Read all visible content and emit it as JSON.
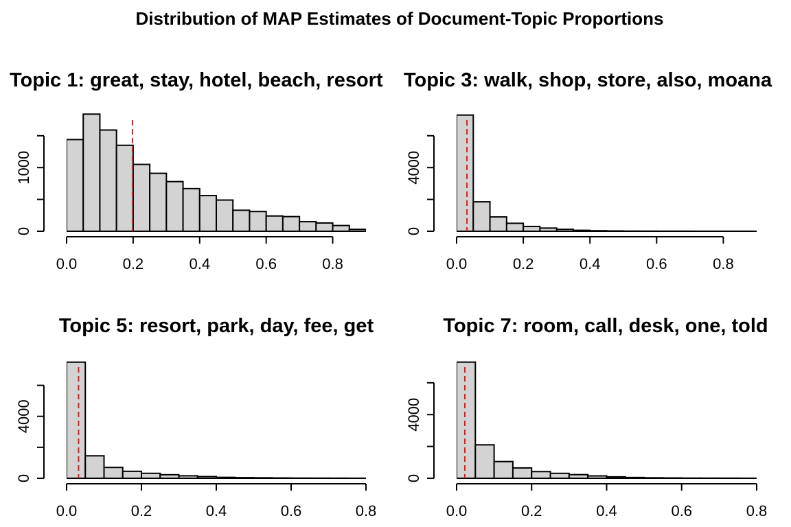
{
  "page_title": "Distribution of MAP Estimates of Document-Topic Proportions",
  "chart_data": [
    {
      "type": "bar",
      "title": "Topic 1: great, stay, hotel, beach, resort",
      "xlabel": "",
      "ylabel": "",
      "bin_width": 0.05,
      "x_start": 0.0,
      "xlim": [
        0.0,
        0.9
      ],
      "ylim": [
        0,
        1800
      ],
      "values": [
        1440,
        1840,
        1590,
        1350,
        1050,
        910,
        780,
        670,
        560,
        490,
        330,
        310,
        240,
        230,
        150,
        130,
        90,
        30
      ],
      "x_ticks": [
        0.0,
        0.2,
        0.4,
        0.6,
        0.8
      ],
      "x_tick_labels": [
        "0.0",
        "0.2",
        "0.4",
        "0.6",
        "0.8"
      ],
      "y_ticks": [
        0,
        500,
        1000,
        1500
      ],
      "y_tick_labels": [
        "0",
        "",
        "1000",
        ""
      ],
      "mean_line": 0.198,
      "mean_line_color": "#e41a1c",
      "bar_color": "#d3d3d3"
    },
    {
      "type": "bar",
      "title": "Topic 3: walk, shop, store, also, moana",
      "xlabel": "",
      "ylabel": "",
      "bin_width": 0.05,
      "x_start": 0.0,
      "xlim": [
        0.0,
        0.9
      ],
      "ylim": [
        0,
        7200
      ],
      "values": [
        7300,
        1850,
        900,
        500,
        300,
        200,
        120,
        60,
        35,
        20,
        10,
        8,
        5,
        5,
        3,
        2,
        2,
        2
      ],
      "x_ticks": [
        0.0,
        0.2,
        0.4,
        0.6,
        0.8
      ],
      "x_tick_labels": [
        "0.0",
        "0.2",
        "0.4",
        "0.6",
        "0.8"
      ],
      "y_ticks": [
        0,
        2000,
        4000,
        6000
      ],
      "y_tick_labels": [
        "0",
        "",
        "4000",
        ""
      ],
      "mean_line": 0.031,
      "mean_line_color": "#e41a1c",
      "bar_color": "#d3d3d3"
    },
    {
      "type": "bar",
      "title": "Topic 5: resort, park, day, fee, get",
      "xlabel": "",
      "ylabel": "",
      "bin_width": 0.05,
      "x_start": 0.0,
      "xlim": [
        0.0,
        0.8
      ],
      "ylim": [
        0,
        7400
      ],
      "values": [
        7500,
        1450,
        700,
        450,
        320,
        230,
        160,
        110,
        60,
        40,
        30,
        20,
        12,
        10,
        8,
        5
      ],
      "x_ticks": [
        0.0,
        0.2,
        0.4,
        0.6,
        0.8
      ],
      "x_tick_labels": [
        "0.0",
        "0.2",
        "0.4",
        "0.6",
        "0.8"
      ],
      "y_ticks": [
        0,
        2000,
        4000,
        6000
      ],
      "y_tick_labels": [
        "0",
        "",
        "4000",
        ""
      ],
      "mean_line": 0.032,
      "mean_line_color": "#e41a1c",
      "bar_color": "#d3d3d3"
    },
    {
      "type": "bar",
      "title": "Topic 7: room, call, desk, one, told",
      "xlabel": "",
      "ylabel": "",
      "bin_width": 0.05,
      "x_start": 0.0,
      "xlim": [
        0.0,
        0.8
      ],
      "ylim": [
        0,
        7200
      ],
      "values": [
        7300,
        2100,
        1050,
        650,
        420,
        310,
        230,
        150,
        90,
        50,
        30,
        20,
        12,
        10,
        8,
        5
      ],
      "x_ticks": [
        0.0,
        0.2,
        0.4,
        0.6,
        0.8
      ],
      "x_tick_labels": [
        "0.0",
        "0.2",
        "0.4",
        "0.6",
        "0.8"
      ],
      "y_ticks": [
        0,
        2000,
        4000,
        6000
      ],
      "y_tick_labels": [
        "0",
        "",
        "4000",
        ""
      ],
      "mean_line": 0.022,
      "mean_line_color": "#e41a1c",
      "bar_color": "#d3d3d3"
    }
  ]
}
